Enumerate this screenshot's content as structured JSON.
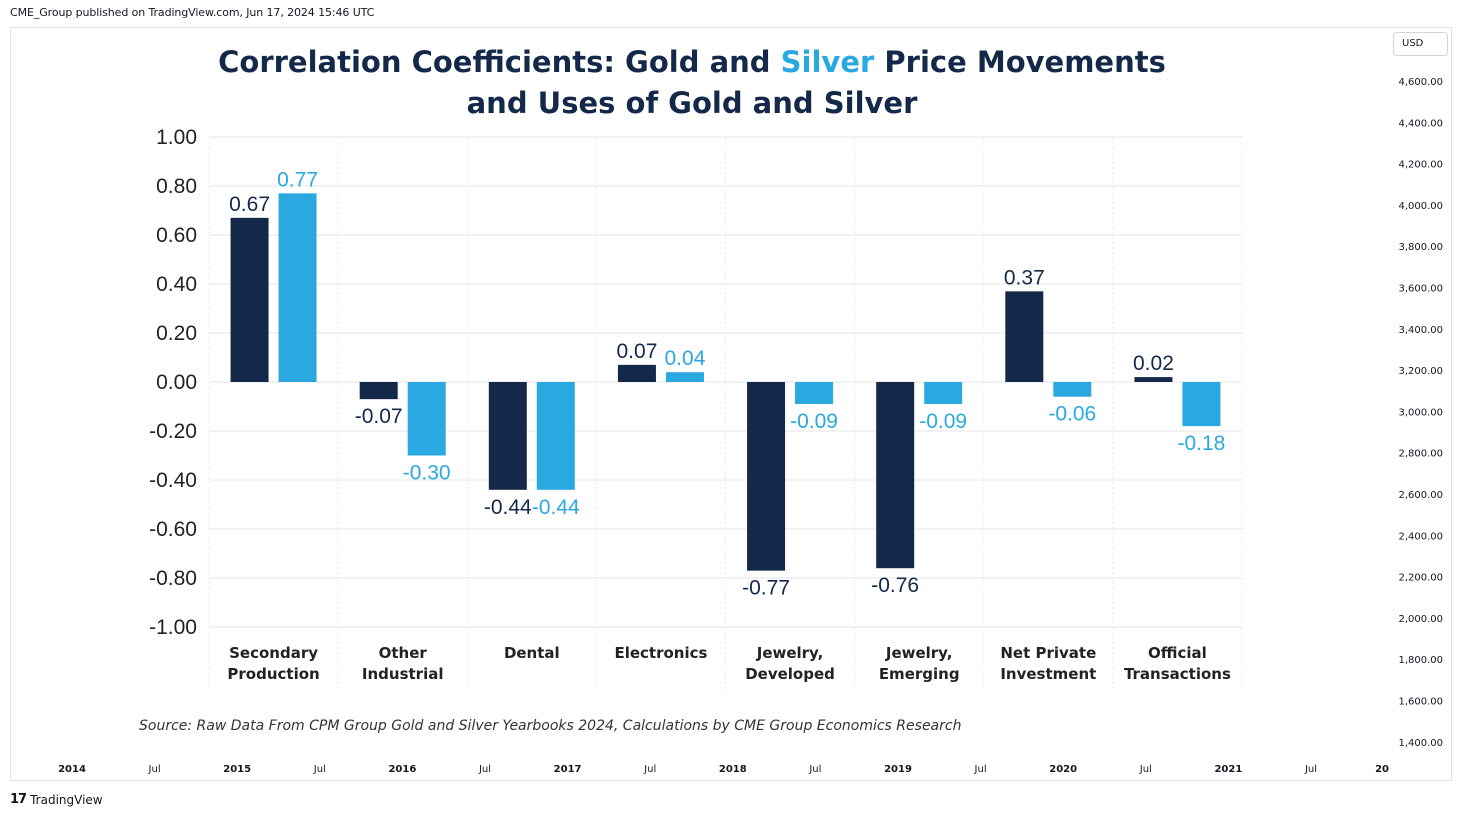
{
  "header": {
    "published_line": "CME_Group published on TradingView.com, Jun 17, 2024 15:46 UTC"
  },
  "toolbar": {
    "currency_label": "USD"
  },
  "footer": {
    "logo_text": "TradingView",
    "logo_mark": "17"
  },
  "colors": {
    "gold": "#14294a",
    "silver": "#2aa8e0",
    "grid": "#e6e6e6",
    "vgrid": "#e8e8e8"
  },
  "right_scale": {
    "labels": [
      "4,600.00",
      "4,400.00",
      "4,200.00",
      "4,000.00",
      "3,800.00",
      "3,600.00",
      "3,400.00",
      "3,200.00",
      "3,000.00",
      "2,800.00",
      "2,600.00",
      "2,400.00",
      "2,200.00",
      "2,000.00",
      "1,800.00",
      "1,600.00",
      "1,400.00"
    ]
  },
  "time_axis": {
    "labels": [
      {
        "text": "2014",
        "year": true
      },
      {
        "text": "Jul",
        "year": false
      },
      {
        "text": "2015",
        "year": true
      },
      {
        "text": "Jul",
        "year": false
      },
      {
        "text": "2016",
        "year": true
      },
      {
        "text": "Jul",
        "year": false
      },
      {
        "text": "2017",
        "year": true
      },
      {
        "text": "Jul",
        "year": false
      },
      {
        "text": "2018",
        "year": true
      },
      {
        "text": "Jul",
        "year": false
      },
      {
        "text": "2019",
        "year": true
      },
      {
        "text": "Jul",
        "year": false
      },
      {
        "text": "2020",
        "year": true
      },
      {
        "text": "Jul",
        "year": false
      },
      {
        "text": "2021",
        "year": true
      },
      {
        "text": "Jul",
        "year": false
      },
      {
        "text": "20",
        "year": true
      }
    ]
  },
  "chart_data": {
    "type": "bar",
    "title": "Correlation Coefficients: Gold and Silver Price Movements and Uses of Gold and Silver",
    "title_parts": {
      "line1_a": "Correlation Coefficients: Gold and ",
      "line1_b": "Silver",
      "line1_c": " Price Movements",
      "line2": "and Uses of Gold and Silver"
    },
    "categories": [
      [
        "Secondary",
        "Production"
      ],
      [
        "Other",
        "Industrial"
      ],
      [
        "Dental"
      ],
      [
        "Electronics"
      ],
      [
        "Jewelry,",
        "Developed"
      ],
      [
        "Jewelry,",
        "Emerging"
      ],
      [
        "Net Private",
        "Investment"
      ],
      [
        "Official",
        "Transactions"
      ]
    ],
    "series": [
      {
        "name": "Gold",
        "values": [
          0.67,
          -0.07,
          -0.44,
          0.07,
          -0.77,
          -0.76,
          0.37,
          0.02
        ]
      },
      {
        "name": "Silver",
        "values": [
          0.77,
          -0.3,
          -0.44,
          0.04,
          -0.09,
          -0.09,
          -0.06,
          -0.18
        ]
      }
    ],
    "ylim": [
      -1.0,
      1.0
    ],
    "yticks": [
      "1.00",
      "0.80",
      "0.60",
      "0.40",
      "0.20",
      "0.00",
      "-0.20",
      "-0.40",
      "-0.60",
      "-0.80",
      "-1.00"
    ],
    "ytick_values": [
      1.0,
      0.8,
      0.6,
      0.4,
      0.2,
      0.0,
      -0.2,
      -0.4,
      -0.6,
      -0.8,
      -1.0
    ],
    "xlabel": "",
    "ylabel": "",
    "source": "Source: Raw Data From CPM Group Gold and Silver Yearbooks 2024, Calculations by CME Group Economics Research"
  }
}
